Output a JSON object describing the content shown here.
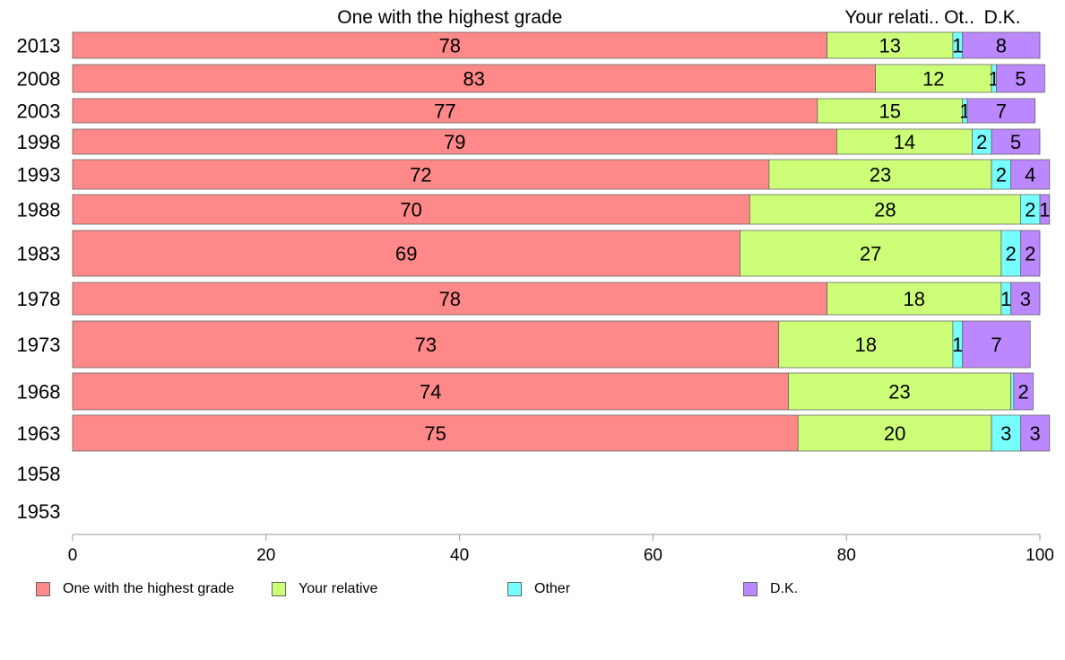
{
  "chart_data": {
    "type": "bar",
    "orientation": "horizontal",
    "stacked": true,
    "categories": [
      "2013",
      "2008",
      "2003",
      "1998",
      "1993",
      "1988",
      "1983",
      "1978",
      "1973",
      "1968",
      "1963",
      "1958",
      "1953"
    ],
    "series": [
      {
        "name": "One with the highest grade",
        "color": "#ff8888",
        "values": [
          78,
          83,
          77,
          79,
          72,
          70,
          69,
          78,
          73,
          74,
          75,
          null,
          null
        ]
      },
      {
        "name": "Your relative",
        "color": "#ccff77",
        "values": [
          13,
          12,
          15,
          14,
          23,
          28,
          27,
          18,
          18,
          23,
          20,
          null,
          null
        ]
      },
      {
        "name": "Other",
        "color": "#77ffff",
        "values": [
          1,
          0.5,
          0.5,
          2,
          2,
          2,
          2,
          1,
          1,
          0.3,
          3,
          null,
          null
        ]
      },
      {
        "name": "D.K.",
        "color": "#bb88ff",
        "values": [
          8,
          5,
          7,
          5,
          4,
          1,
          2,
          3,
          7,
          2,
          3,
          null,
          null
        ]
      }
    ],
    "data_labels": [
      [
        "78",
        "83",
        "77",
        "79",
        "72",
        "70",
        "69",
        "78",
        "73",
        "74",
        "75",
        "",
        ""
      ],
      [
        "13",
        "12",
        "15",
        "14",
        "23",
        "28",
        "27",
        "18",
        "18",
        "23",
        "20",
        "",
        ""
      ],
      [
        "1",
        "1",
        "1",
        "2",
        "2",
        "2",
        "2",
        "1",
        "1",
        "",
        "3",
        "",
        ""
      ],
      [
        "8",
        "5",
        "7",
        "5",
        "4",
        "1",
        "2",
        "3",
        "7",
        "2",
        "3",
        "",
        ""
      ]
    ],
    "top_labels": [
      "One with the highest grade",
      "Your relati..",
      "Ot..",
      "D.K."
    ],
    "xlim": [
      0,
      100
    ],
    "xticks": [
      "0",
      "20",
      "40",
      "60",
      "80",
      "100"
    ],
    "grid": false,
    "legend_position": "bottom"
  }
}
